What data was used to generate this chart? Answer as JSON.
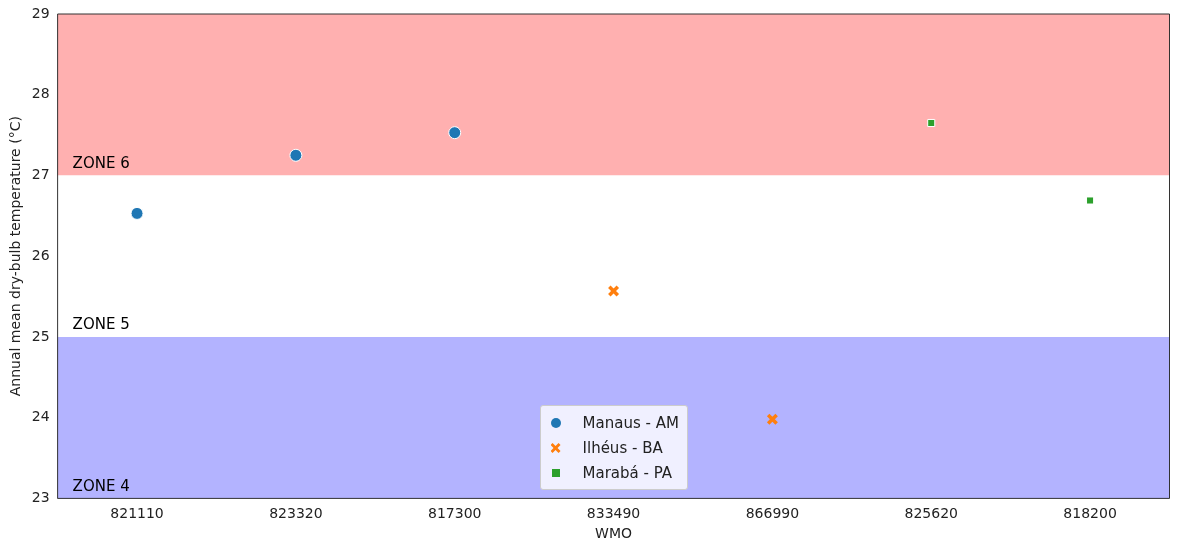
{
  "chart_data": {
    "type": "scatter",
    "xlabel": "WMO",
    "ylabel": "Annual mean dry-bulb temperature (°C)",
    "categories": [
      "821110",
      "823320",
      "817300",
      "833490",
      "866990",
      "825620",
      "818200"
    ],
    "series": [
      {
        "name": "Manaus - AM",
        "color": "#1f77b4",
        "marker": "circle",
        "x": [
          "821110",
          "823320",
          "817300"
        ],
        "values": [
          26.53,
          27.25,
          27.53
        ]
      },
      {
        "name": "Ilhéus - BA",
        "color": "#ff7f0e",
        "marker": "cross",
        "x": [
          "833490",
          "866990"
        ],
        "values": [
          25.57,
          23.98
        ]
      },
      {
        "name": "Marabá - PA",
        "color": "#2ca02c",
        "marker": "square",
        "x": [
          "825620",
          "818200"
        ],
        "values": [
          27.65,
          26.69
        ]
      }
    ],
    "ylim": [
      23,
      29
    ],
    "yticks": [
      23,
      24,
      25,
      26,
      27,
      28,
      29
    ],
    "grid": false,
    "legend": "bottom",
    "bands": [
      {
        "axis": "y",
        "from": 27,
        "to": 29,
        "label": "ZONE 6",
        "color": "#ffb0b0"
      },
      {
        "axis": "y",
        "from": 25,
        "to": 27,
        "label": "ZONE 5",
        "color": "#ffffff"
      },
      {
        "axis": "y",
        "from": 23,
        "to": 25,
        "label": "ZONE 4",
        "color": "#b3b3ff"
      }
    ]
  }
}
